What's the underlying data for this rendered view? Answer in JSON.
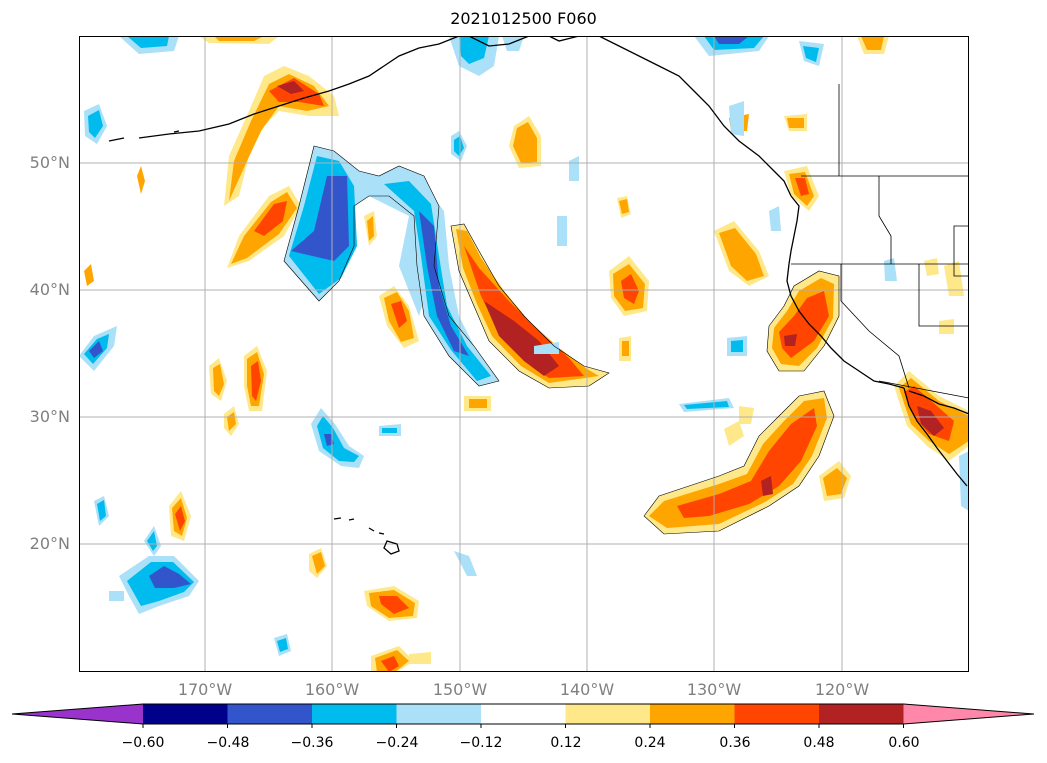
{
  "title": "2021012500 F060",
  "latitudes": [
    {
      "label": "50°N",
      "value": 50
    },
    {
      "label": "40°N",
      "value": 40
    },
    {
      "label": "30°N",
      "value": 30
    },
    {
      "label": "20°N",
      "value": 20
    }
  ],
  "longitudes": [
    {
      "label": "170°W",
      "value": -170
    },
    {
      "label": "160°W",
      "value": -160
    },
    {
      "label": "150°W",
      "value": -150
    },
    {
      "label": "140°W",
      "value": -140
    },
    {
      "label": "130°W",
      "value": -130
    },
    {
      "label": "120°W",
      "value": -120
    }
  ],
  "colorbar": {
    "ticks": [
      "−0.60",
      "−0.48",
      "−0.36",
      "−0.24",
      "−0.12",
      "0.12",
      "0.24",
      "0.36",
      "0.48",
      "0.60"
    ],
    "colors": [
      "#9933cc",
      "#00008b",
      "#3355cc",
      "#00bbee",
      "#aae0f8",
      "#ffffff",
      "#ffe88a",
      "#ffa500",
      "#ff4500",
      "#b22222",
      "#ff88aa"
    ]
  },
  "palette": {
    "neg_light": "#aae0f8",
    "neg_mid": "#00bbee",
    "neg_dark": "#3355cc",
    "pos_light": "#ffe88a",
    "pos_mid": "#ffa500",
    "pos_high": "#ff4500",
    "pos_max": "#b22222",
    "grid": "#b0b0b0"
  }
}
